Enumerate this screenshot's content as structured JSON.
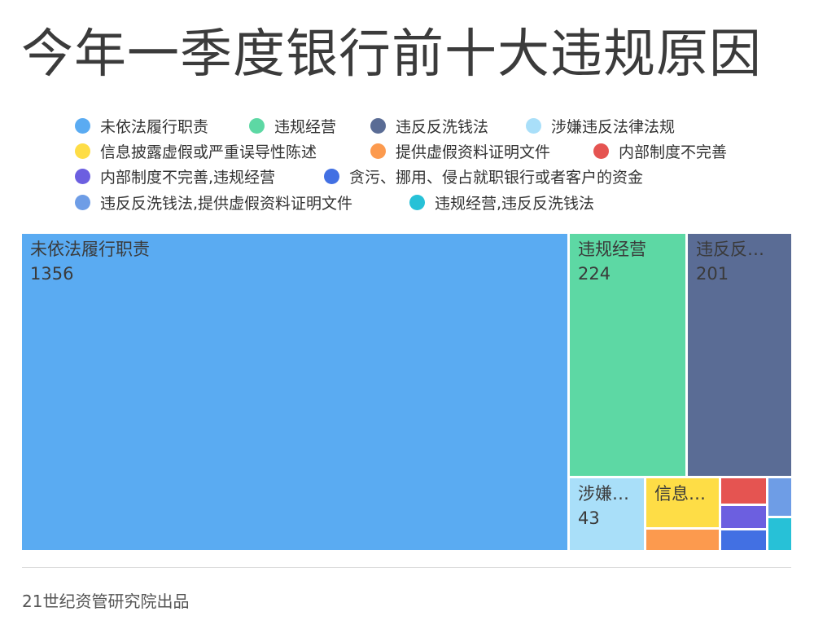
{
  "chart_data": {
    "type": "treemap",
    "title": "今年一季度银行前十大违规原因",
    "source": "21世纪资管研究院出品",
    "nodes": [
      {
        "name": "未依法履行职责",
        "value": 1356,
        "color": "#5aabf2",
        "label": "未依法履行职责",
        "value_label": "1356"
      },
      {
        "name": "违规经营",
        "value": 224,
        "color": "#5dd8a4",
        "label": "违规经营",
        "value_label": "224"
      },
      {
        "name": "违反反洗钱法",
        "value": 201,
        "color": "#5a6c95",
        "label": "违反反…",
        "value_label": "201"
      },
      {
        "name": "涉嫌违反法律法规",
        "value": 43,
        "color": "#a9dff9",
        "label": "涉嫌…",
        "value_label": "43"
      },
      {
        "name": "信息披露虚假或严重误导性陈述",
        "value": 33,
        "color": "#fedd46",
        "label": "信息…",
        "value_label": ""
      },
      {
        "name": "提供虚假资料证明文件",
        "value": 9,
        "color": "#fc9a4e",
        "label": "",
        "value_label": ""
      },
      {
        "name": "内部制度不完善",
        "value": 12,
        "color": "#e55451",
        "label": "",
        "value_label": ""
      },
      {
        "name": "内部制度不完善,违规经营",
        "value": 11,
        "color": "#6c5fe0",
        "label": "",
        "value_label": ""
      },
      {
        "name": "贪污、挪用、侵占就职银行或者客户的资金",
        "value": 10,
        "color": "#4270e3",
        "label": "",
        "value_label": ""
      },
      {
        "name": "违反反洗钱法,提供虚假资料证明文件",
        "value": 5,
        "color": "#6e9de6",
        "label": "",
        "value_label": ""
      },
      {
        "name": "违规经营,违反反洗钱法",
        "value": 5,
        "color": "#27c1d7",
        "label": "",
        "value_label": ""
      }
    ]
  }
}
